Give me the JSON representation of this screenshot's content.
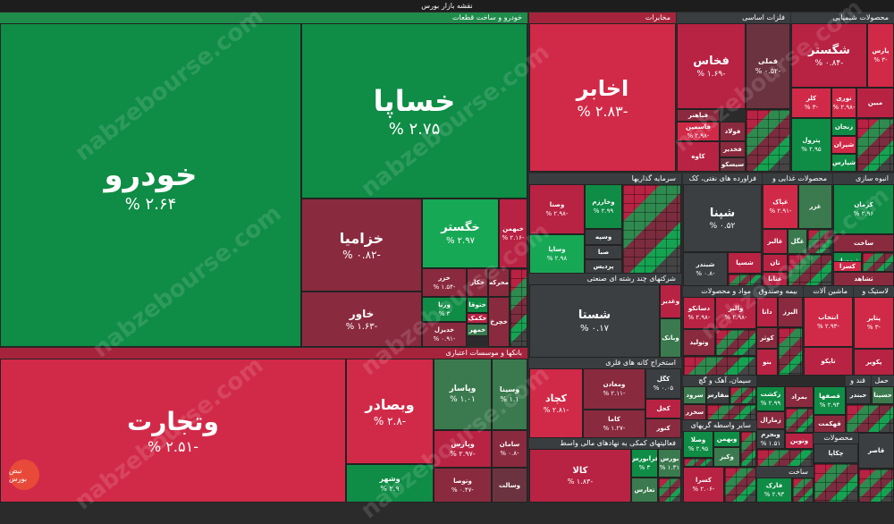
{
  "title": "نقشه بازار بورس",
  "watermark": "nabzebourse.com",
  "logo_text": "نبض بورس",
  "sectors": {
    "khodro": "خودرو و ساخت قطعات",
    "bank": "بانکها و موسسات اعتباری",
    "mokhaberat": "مخابرات",
    "felezat": "فلزات اساسی",
    "shimiaei": "محصولات شیمیایی",
    "sarmaye": "سرمایه گذاریها",
    "nafti": "فراورده های نفتی، کک",
    "ghazaei": "محصولات غذایی و",
    "anbooh": "انبوه سازی",
    "chand_reshte": "شرکتهای چند رشته ای صنعتی",
    "bime": "بیمه وصندوق",
    "mavad": "مواد و محصولات",
    "mashin": "ماشین آلات",
    "lastik": "لاستیک و",
    "estekhraj": "استخراج کانه های فلزی",
    "siman": "سیمان، آهک و گچ",
    "vaseteh": "سایر واسطه گریهای",
    "komaki": "فعالیتهای کمکی به نهادهای مالی واسط",
    "ghand": "قند و",
    "hamل": "حمل",
    "mahsoolat": "محصولات",
    "sakht": "ساخت"
  },
  "tiles": {
    "khodro": {
      "n": "خودرو",
      "p": "% ۲.۶۴"
    },
    "khsapa": {
      "n": "خساپا",
      "p": "% ۲.۷۵"
    },
    "khzamia": {
      "n": "خزامیا",
      "p": "% ۰.۸۲-"
    },
    "khgostar": {
      "n": "خگستر",
      "p": "% ۲.۹۷"
    },
    "khbahman": {
      "n": "خبهمن",
      "p": "% ۲.۱۶-"
    },
    "khavar": {
      "n": "خاور",
      "p": "% ۱.۶۳-"
    },
    "khzar": {
      "n": "خزر",
      "p": "% ۱.۵۴-"
    },
    "khkar": {
      "n": "خکار",
      "p": ""
    },
    "mehrkeh": {
      "n": "محرکه",
      "p": ""
    },
    "varna": {
      "n": "ورنا",
      "p": "% ۳"
    },
    "khoto": {
      "n": "ختوقا",
      "p": "% ۳"
    },
    "khkomak": {
      "n": "خکمک",
      "p": ""
    },
    "khdizel": {
      "n": "خدیزل",
      "p": "% ۰.۹۱-"
    },
    "khamhar": {
      "n": "خمهر",
      "p": ""
    },
    "khchar": {
      "n": "خچرخ",
      "p": ""
    },
    "vtejarat": {
      "n": "وتجارت",
      "p": "% ۲.۵۱-"
    },
    "vbsader": {
      "n": "وبصادر",
      "p": "% ۲.۸-"
    },
    "vpasar": {
      "n": "وپاسار",
      "p": "% ۱.۰۱"
    },
    "vsina": {
      "n": "وسینا",
      "p": "% ۱.۱"
    },
    "vparas": {
      "n": "وپارس",
      "p": "% ۲.۹۷-"
    },
    "saman": {
      "n": "سامان",
      "p": "% ۰.۸-"
    },
    "vshahr": {
      "n": "وشهر",
      "p": "% ۲.۹"
    },
    "vtoon": {
      "n": "وتوصا",
      "p": "% ۰.۴۷-"
    },
    "vsalet": {
      "n": "وسالت",
      "p": ""
    },
    "akhabar": {
      "n": "اخابر",
      "p": "% ۲.۸۳-"
    },
    "fkhas": {
      "n": "فخاس",
      "p": "% ۱.۶۹-"
    },
    "fmeli": {
      "n": "فملی",
      "p": "% ۰.۵۲-"
    },
    "fbahar": {
      "n": "فباهنر",
      "p": ""
    },
    "fmes": {
      "n": "فاسمین",
      "p": "% ۲.۹۸-"
    },
    "foolad": {
      "n": "فولاد",
      "p": "% ۰.۷"
    },
    "fsadr": {
      "n": "فخدیر",
      "p": ""
    },
    "kaveh": {
      "n": "کاوه",
      "p": ""
    },
    "fsisko": {
      "n": "سیسکو",
      "p": ""
    },
    "shegostar": {
      "n": "شگستر",
      "p": "% ۰.۸۴-"
    },
    "paris": {
      "n": "پارس",
      "p": "% ۳-"
    },
    "kala": {
      "n": "کلر",
      "p": "% ۳-"
    },
    "noori": {
      "n": "نوری",
      "p": "% ۲.۹۸-"
    },
    "mobin": {
      "n": "مبین",
      "p": "% ۳-"
    },
    "zanjan": {
      "n": "زنجان",
      "p": ""
    },
    "petrol": {
      "n": "پترول",
      "p": "% ۲.۹۵"
    },
    "shiran": {
      "n": "شیران",
      "p": ""
    },
    "shpars": {
      "n": "شپارس",
      "p": ""
    },
    "shekam": {
      "n": "شکام",
      "p": ""
    },
    "vsna": {
      "n": "وصنا",
      "p": "% ۲.۹۸-"
    },
    "vkhark": {
      "n": "وخارزم",
      "p": "% ۲.۹۹"
    },
    "vsveh": {
      "n": "وسپه",
      "p": ""
    },
    "vsapa": {
      "n": "وساپا",
      "p": "% ۲.۹۸"
    },
    "saba": {
      "n": "صبا",
      "p": ""
    },
    "pardis": {
      "n": "پردیس",
      "p": ""
    },
    "shpna": {
      "n": "شپنا",
      "p": "% ۰.۵۲"
    },
    "shbandar": {
      "n": "شبندر",
      "p": "% ۰.۸-"
    },
    "shsipa": {
      "n": "شسپا",
      "p": ""
    },
    "ghpak": {
      "n": "غپاک",
      "p": "% ۲.۹۱-"
    },
    "ghaz": {
      "n": "غزر",
      "p": ""
    },
    "ghalis": {
      "n": "غالبر",
      "p": "% ۲.۹۹-"
    },
    "ghgol": {
      "n": "غگل",
      "p": ""
    },
    "tan": {
      "n": "تان",
      "p": ""
    },
    "ghnab": {
      "n": "غنابا",
      "p": ""
    },
    "kerman": {
      "n": "کرمان",
      "p": "% ۲.۹۶"
    },
    "sakhtf": {
      "n": "ساخت",
      "p": ""
    },
    "thmsaz": {
      "n": "ثبهساز",
      "p": ""
    },
    "kasra": {
      "n": "کسرا",
      "p": ""
    },
    "thahed": {
      "n": "ثشاهد",
      "p": ""
    },
    "shasta": {
      "n": "شستا",
      "p": "% ۰.۱۷"
    },
    "vghadir": {
      "n": "وغدیر",
      "p": ""
    },
    "vbank": {
      "n": "وبانک",
      "p": ""
    },
    "kchad": {
      "n": "کچاد",
      "p": "% ۲.۸۱-"
    },
    "vmadan": {
      "n": "ومعادن",
      "p": "% ۲.۱۱-"
    },
    "kama": {
      "n": "کاما",
      "p": "% ۱.۲۷-"
    },
    "kgol": {
      "n": "کگل",
      "p": "% ۰.۰۵"
    },
    "kjel": {
      "n": "کجل",
      "p": ""
    },
    "kaser": {
      "n": "کنور",
      "p": ""
    },
    "kala2": {
      "n": "کالا",
      "p": "% ۱.۸۳-"
    },
    "farabors": {
      "n": "فرابورس",
      "p": "% ۳"
    },
    "bors": {
      "n": "بورس",
      "p": "% ۱.۳۱"
    },
    "tares": {
      "n": "تعارس",
      "p": ""
    },
    "dsanko": {
      "n": "دسانکو",
      "p": "% ۲.۹۸-"
    },
    "vaghir": {
      "n": "والبر",
      "p": "% ۲.۹۸-"
    },
    "dana": {
      "n": "دانا",
      "p": ""
    },
    "altir": {
      "n": "البرز",
      "p": ""
    },
    "kosar": {
      "n": "کوثر",
      "p": ""
    },
    "bno": {
      "n": "بنو",
      "p": ""
    },
    "bemelat": {
      "n": "بملت",
      "p": ""
    },
    "bmavad": {
      "n": "بموا",
      "p": ""
    },
    "dtolid": {
      "n": "وتولید",
      "p": ""
    },
    "entekhab": {
      "n": "انتخاب",
      "p": "% ۲.۹۳-"
    },
    "tapko": {
      "n": "تاپکو",
      "p": ""
    },
    "ptayer": {
      "n": "پتایر",
      "p": "% ۳-"
    },
    "pakvir": {
      "n": "پکویر",
      "p": ""
    },
    "sarood": {
      "n": "سرود",
      "p": ""
    },
    "sfars": {
      "n": "سفارس",
      "p": ""
    },
    "sakhaz": {
      "n": "سخزر",
      "p": ""
    },
    "zagros": {
      "n": "زکشت",
      "p": "% ۲.۹۹"
    },
    "zmaral": {
      "n": "زمارال",
      "p": ""
    },
    "ghsahand": {
      "n": "قصفها",
      "p": "% ۲.۹۴"
    },
    "bemraz": {
      "n": "بمراد",
      "p": ""
    },
    "kahla": {
      "n": "قهکمت",
      "p": ""
    },
    "hbandar": {
      "n": "حبندر",
      "p": ""
    },
    "hsina": {
      "n": "حسینا",
      "p": ""
    },
    "vtoka": {
      "n": "وصلا",
      "p": "% ۲.۹۵"
    },
    "vbahman": {
      "n": "وبهمن",
      "p": ""
    },
    "vziz": {
      "n": "وکیز",
      "p": ""
    },
    "vbejr": {
      "n": "وبجرم",
      "p": "% ۱.۵۱"
    },
    "vnovin": {
      "n": "ونوین",
      "p": ""
    },
    "kasra2": {
      "n": "کسرا",
      "p": "% ۲.۰۶-"
    },
    "farak": {
      "n": "فارک",
      "p": "% ۲.۹۳"
    },
    "chakapa": {
      "n": "چکاپا",
      "p": ""
    },
    "ghazr": {
      "n": "قاصر",
      "p": ""
    }
  }
}
